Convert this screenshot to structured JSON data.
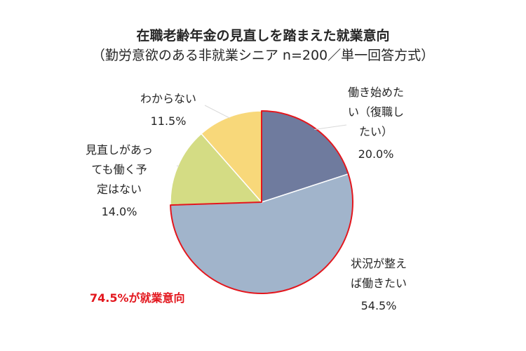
{
  "chart_data": {
    "type": "pie",
    "title": "在職老齢年金の見直しを踏まえた就業意向",
    "subtitle": "（勤労意欲のある非就業シニア n=200／単一回答方式）",
    "slices": [
      {
        "label": "働き始めたい（復職したい）",
        "label_lines": [
          "働き始めた",
          "い（復職し",
          "たい）"
        ],
        "value": 20.0,
        "value_label": "20.0%",
        "color": "#6f7b9e"
      },
      {
        "label": "状況が整えば働きたい",
        "label_lines": [
          "状況が整え",
          "ば働きたい"
        ],
        "value": 54.5,
        "value_label": "54.5%",
        "color": "#a1b4cb"
      },
      {
        "label": "見直しがあっても働く予定はない",
        "label_lines": [
          "見直しがあっ",
          "ても働く予",
          "定はない"
        ],
        "value": 14.0,
        "value_label": "14.0%",
        "color": "#d4dc84"
      },
      {
        "label": "わからない",
        "label_lines": [
          "わからない"
        ],
        "value": 11.5,
        "value_label": "11.5%",
        "color": "#f8d87a"
      }
    ],
    "annotation": "74.5%が就業意向",
    "highlight_color": "#e3161d",
    "legend": "none"
  }
}
